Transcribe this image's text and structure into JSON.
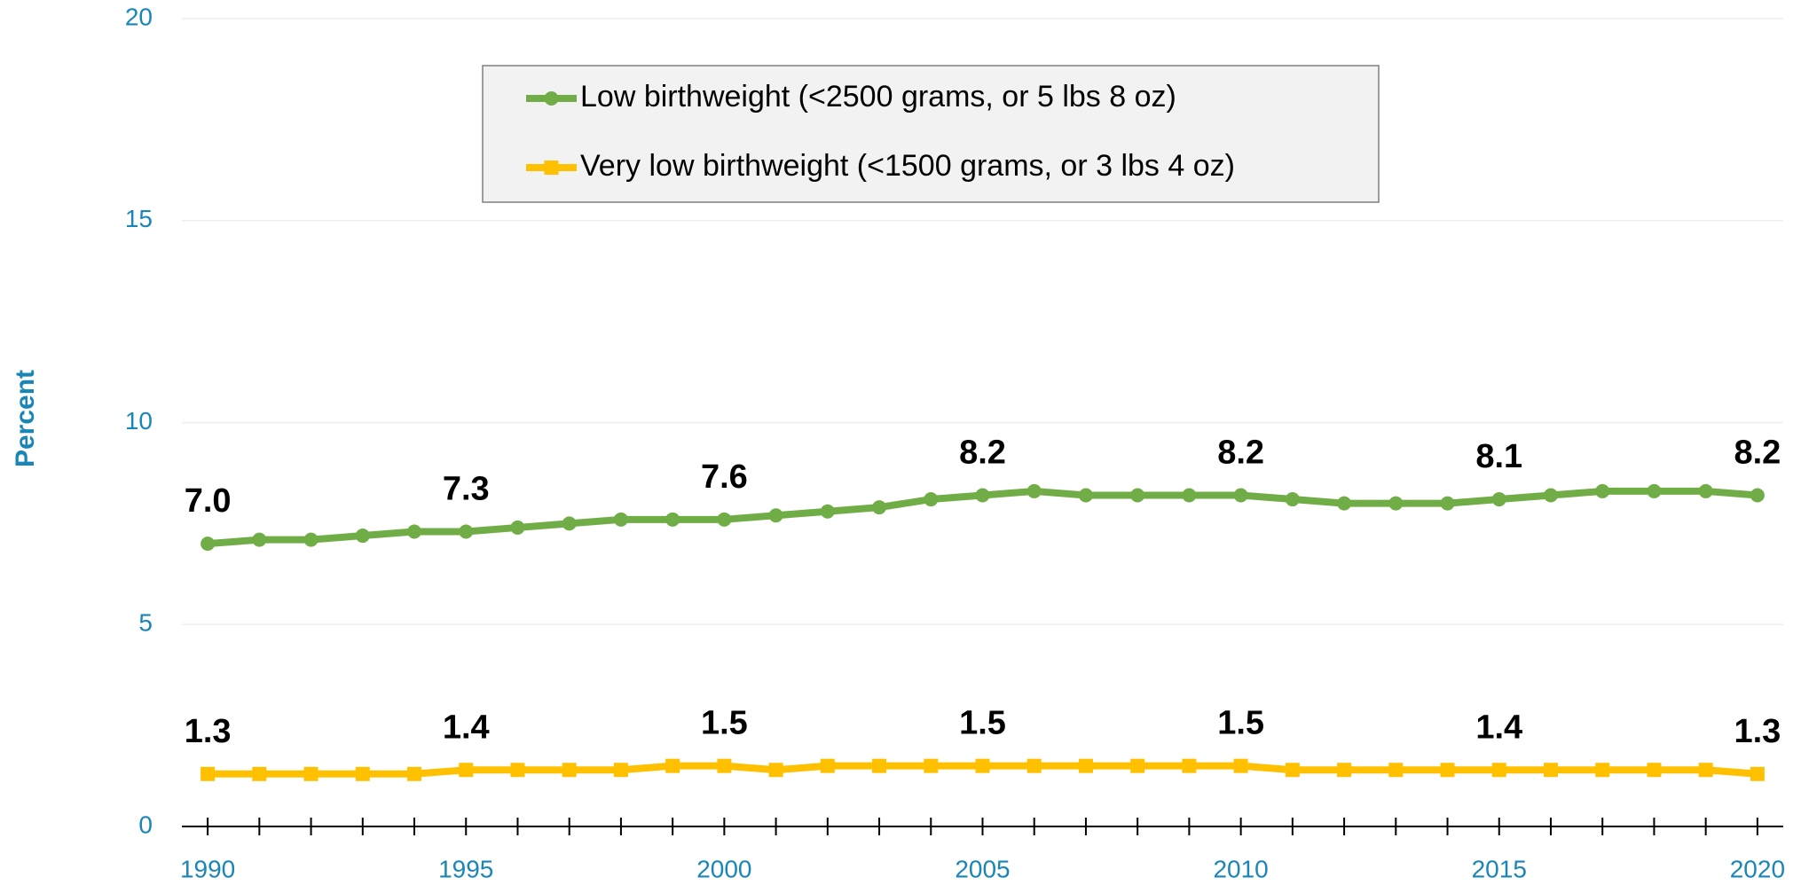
{
  "chart_data": {
    "type": "line",
    "y_label": "Percent",
    "x": [
      1990,
      1991,
      1992,
      1993,
      1994,
      1995,
      1996,
      1997,
      1998,
      1999,
      2000,
      2001,
      2002,
      2003,
      2004,
      2005,
      2006,
      2007,
      2008,
      2009,
      2010,
      2011,
      2012,
      2013,
      2014,
      2015,
      2016,
      2017,
      2018,
      2019,
      2020
    ],
    "series": [
      {
        "name": "Low birthweight (<2500 grams, or 5 lbs 8 oz)",
        "color": "#70ad47",
        "marker": "circle",
        "values": [
          7.0,
          7.1,
          7.1,
          7.2,
          7.3,
          7.3,
          7.4,
          7.5,
          7.6,
          7.6,
          7.6,
          7.7,
          7.8,
          7.9,
          8.1,
          8.2,
          8.3,
          8.2,
          8.2,
          8.2,
          8.2,
          8.1,
          8.0,
          8.0,
          8.0,
          8.1,
          8.2,
          8.3,
          8.3,
          8.3,
          8.2
        ],
        "value_labels": [
          "7.0",
          null,
          null,
          null,
          null,
          "7.3",
          null,
          null,
          null,
          null,
          "7.6",
          null,
          null,
          null,
          null,
          "8.2",
          null,
          null,
          null,
          null,
          "8.2",
          null,
          null,
          null,
          null,
          "8.1",
          null,
          null,
          null,
          null,
          "8.2"
        ]
      },
      {
        "name": "Very low birthweight (<1500 grams, or 3 lbs 4 oz)",
        "color": "#ffc000",
        "marker": "square",
        "values": [
          1.3,
          1.3,
          1.3,
          1.3,
          1.3,
          1.4,
          1.4,
          1.4,
          1.4,
          1.5,
          1.5,
          1.4,
          1.5,
          1.5,
          1.5,
          1.5,
          1.5,
          1.5,
          1.5,
          1.5,
          1.5,
          1.4,
          1.4,
          1.4,
          1.4,
          1.4,
          1.4,
          1.4,
          1.4,
          1.4,
          1.3
        ],
        "value_labels": [
          "1.3",
          null,
          null,
          null,
          null,
          "1.4",
          null,
          null,
          null,
          null,
          "1.5",
          null,
          null,
          null,
          null,
          "1.5",
          null,
          null,
          null,
          null,
          "1.5",
          null,
          null,
          null,
          null,
          "1.4",
          null,
          null,
          null,
          null,
          "1.3"
        ]
      }
    ],
    "xlim": [
      1989.5,
      2020.5
    ],
    "xticks": [
      1990,
      1995,
      2000,
      2005,
      2010,
      2015,
      2020
    ],
    "ylim": [
      0,
      20
    ],
    "yticks": [
      0,
      5,
      10,
      15,
      20
    ],
    "grid": true
  }
}
